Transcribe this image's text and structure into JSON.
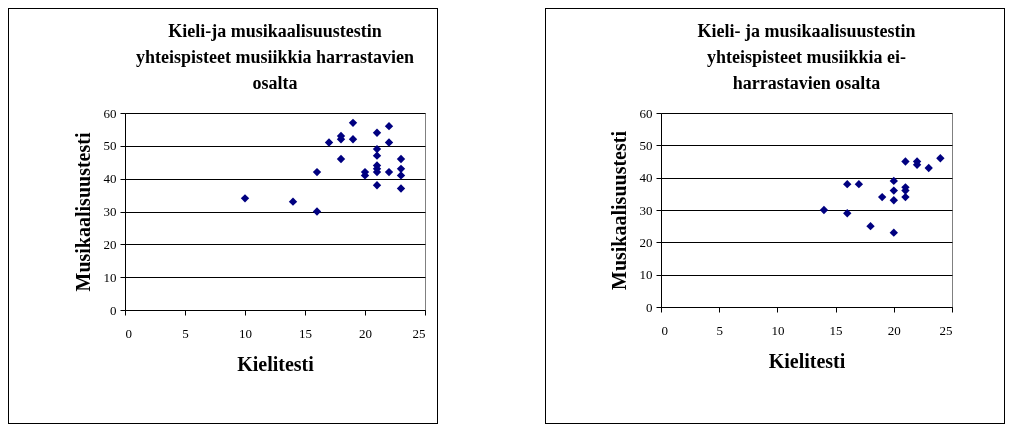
{
  "chart_data": [
    {
      "type": "scatter",
      "title": "Kieli-ja musikaalisuustestin yhteispisteet musiikkia harrastavien osalta",
      "xlabel": "Kielitesti",
      "ylabel": "Musikaalisuustesti",
      "x": [
        10,
        14,
        16,
        16,
        17,
        18,
        18,
        18,
        19,
        19,
        20,
        20,
        21,
        21,
        21,
        21,
        21,
        21,
        21,
        22,
        22,
        22,
        23,
        23,
        23,
        23
      ],
      "values": [
        34,
        33,
        30,
        42,
        51,
        53,
        52,
        46,
        57,
        52,
        42,
        41,
        54,
        49,
        47,
        44,
        43,
        42,
        38,
        56,
        51,
        42,
        46,
        43,
        41,
        37
      ],
      "color": "#000080",
      "marker": "diamond",
      "xlim": [
        0,
        25
      ],
      "xticks": [
        0,
        5,
        10,
        15,
        20,
        25
      ],
      "ylim": [
        0,
        60
      ],
      "yticks": [
        0,
        10,
        20,
        30,
        40,
        50,
        60
      ],
      "grid": "y"
    },
    {
      "type": "scatter",
      "title": "Kieli- ja musikaalisuustestin yhteispisteet musiikkia ei-harrastavien osalta",
      "xlabel": "Kielitesti",
      "ylabel": "Musikaalisuustesti",
      "x": [
        14,
        16,
        16,
        17,
        18,
        19,
        20,
        20,
        20,
        20,
        21,
        21,
        21,
        21,
        22,
        22,
        23,
        24
      ],
      "values": [
        30,
        38,
        29,
        38,
        25,
        34,
        39,
        36,
        33,
        23,
        45,
        37,
        36,
        34,
        45,
        44,
        43,
        46
      ],
      "color": "#000080",
      "marker": "diamond",
      "xlim": [
        0,
        25
      ],
      "xticks": [
        0,
        5,
        10,
        15,
        20,
        25
      ],
      "ylim": [
        0,
        60
      ],
      "yticks": [
        0,
        10,
        20,
        30,
        40,
        50,
        60
      ],
      "grid": "y"
    }
  ]
}
